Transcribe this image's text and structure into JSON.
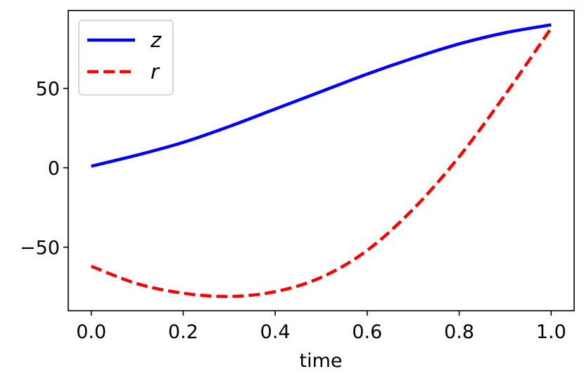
{
  "chart_data": {
    "type": "line",
    "xlabel": "time",
    "ylabel": "",
    "xlim": [
      -0.05,
      1.05
    ],
    "ylim": [
      -90,
      99
    ],
    "xticks": [
      0.0,
      0.2,
      0.4,
      0.6,
      0.8,
      1.0
    ],
    "xtick_labels": [
      "0.0",
      "0.2",
      "0.4",
      "0.6",
      "0.8",
      "1.0"
    ],
    "yticks": [
      -50,
      0,
      50
    ],
    "ytick_labels": [
      "−50",
      "0",
      "50"
    ],
    "grid": false,
    "legend_position": "top-left",
    "x": [
      0.0,
      0.1,
      0.2,
      0.3,
      0.4,
      0.5,
      0.6,
      0.7,
      0.8,
      0.9,
      1.0
    ],
    "series": [
      {
        "name": "z",
        "color": "#0000ff",
        "style": "solid",
        "values": [
          1,
          8,
          16,
          26,
          37,
          48,
          59,
          69,
          78,
          85,
          90
        ]
      },
      {
        "name": "r",
        "color": "#ff0000",
        "style": "dashed",
        "values": [
          -62,
          -73,
          -79,
          -81,
          -78,
          -69,
          -52,
          -26,
          7,
          46,
          88
        ]
      }
    ]
  }
}
